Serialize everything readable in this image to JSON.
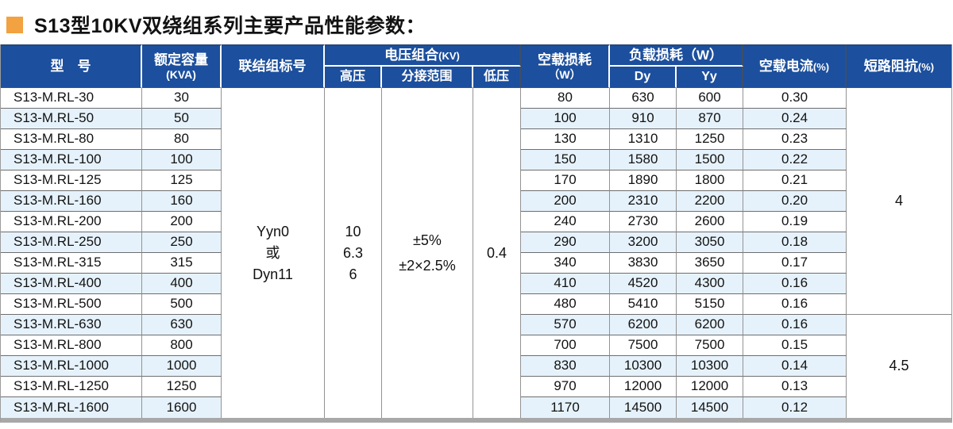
{
  "title": {
    "text": "S13型10KV双绕组系列主要产品性能参数：",
    "bullet_icon": "orange-square"
  },
  "colors": {
    "header_bg": "#1c4f9d",
    "header_text": "#ffffff",
    "stripe": "#e6f2fb",
    "bullet_orange": "#f2a240",
    "body_text": "#121212",
    "bottom_border": "#a8a8a8"
  },
  "table": {
    "headers": {
      "model": "型　号",
      "capacity": {
        "line1": "额定容量",
        "line2": "(KVA)"
      },
      "connection": "联结组标号",
      "voltage_group": {
        "label": "电压组合",
        "suffix": "(KV)"
      },
      "hv": "高压",
      "tap": "分接范围",
      "lv": "低压",
      "no_load_loss": {
        "line1": "空载损耗",
        "line2": "（W）"
      },
      "load_loss": "负载损耗（W）",
      "dy": "Dy",
      "yy": "Yy",
      "no_load_current": {
        "label": "空载电流",
        "suffix": "(%)"
      },
      "impedance": {
        "label": "短路阻抗",
        "suffix": "(%)"
      }
    },
    "merged": {
      "connection_lines": [
        "Yyn0",
        "或",
        "Dyn11"
      ],
      "hv_lines": [
        "10",
        "6.3",
        "6"
      ],
      "tap_lines": [
        "±5%",
        "±2×2.5%"
      ],
      "lv": "0.4",
      "impedance_groups": [
        {
          "value": "4",
          "rows": 11
        },
        {
          "value": "4.5",
          "rows": 5
        }
      ]
    },
    "rows": [
      {
        "model": "S13-M.RL-30",
        "kva": "30",
        "no_load": "80",
        "dy": "630",
        "yy": "600",
        "current": "0.30"
      },
      {
        "model": "S13-M.RL-50",
        "kva": "50",
        "no_load": "100",
        "dy": "910",
        "yy": "870",
        "current": "0.24"
      },
      {
        "model": "S13-M.RL-80",
        "kva": "80",
        "no_load": "130",
        "dy": "1310",
        "yy": "1250",
        "current": "0.23"
      },
      {
        "model": "S13-M.RL-100",
        "kva": "100",
        "no_load": "150",
        "dy": "1580",
        "yy": "1500",
        "current": "0.22"
      },
      {
        "model": "S13-M.RL-125",
        "kva": "125",
        "no_load": "170",
        "dy": "1890",
        "yy": "1800",
        "current": "0.21"
      },
      {
        "model": "S13-M.RL-160",
        "kva": "160",
        "no_load": "200",
        "dy": "2310",
        "yy": "2200",
        "current": "0.20"
      },
      {
        "model": "S13-M.RL-200",
        "kva": "200",
        "no_load": "240",
        "dy": "2730",
        "yy": "2600",
        "current": "0.19"
      },
      {
        "model": "S13-M.RL-250",
        "kva": "250",
        "no_load": "290",
        "dy": "3200",
        "yy": "3050",
        "current": "0.18"
      },
      {
        "model": "S13-M.RL-315",
        "kva": "315",
        "no_load": "340",
        "dy": "3830",
        "yy": "3650",
        "current": "0.17"
      },
      {
        "model": "S13-M.RL-400",
        "kva": "400",
        "no_load": "410",
        "dy": "4520",
        "yy": "4300",
        "current": "0.16"
      },
      {
        "model": "S13-M.RL-500",
        "kva": "500",
        "no_load": "480",
        "dy": "5410",
        "yy": "5150",
        "current": "0.16"
      },
      {
        "model": "S13-M.RL-630",
        "kva": "630",
        "no_load": "570",
        "dy": "6200",
        "yy": "6200",
        "current": "0.16"
      },
      {
        "model": "S13-M.RL-800",
        "kva": "800",
        "no_load": "700",
        "dy": "7500",
        "yy": "7500",
        "current": "0.15"
      },
      {
        "model": "S13-M.RL-1000",
        "kva": "1000",
        "no_load": "830",
        "dy": "10300",
        "yy": "10300",
        "current": "0.14"
      },
      {
        "model": "S13-M.RL-1250",
        "kva": "1250",
        "no_load": "970",
        "dy": "12000",
        "yy": "12000",
        "current": "0.13"
      },
      {
        "model": "S13-M.RL-1600",
        "kva": "1600",
        "no_load": "1170",
        "dy": "14500",
        "yy": "14500",
        "current": "0.12"
      }
    ]
  }
}
